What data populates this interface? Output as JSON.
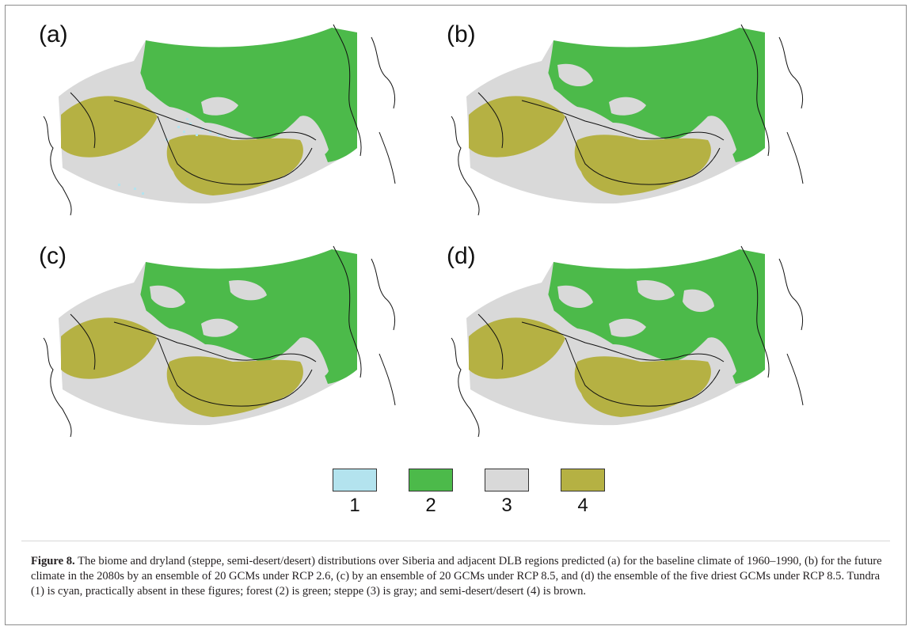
{
  "panels": [
    {
      "label": "(a)",
      "extra_gray": 0,
      "tundra": true
    },
    {
      "label": "(b)",
      "extra_gray": 1,
      "tundra": false
    },
    {
      "label": "(c)",
      "extra_gray": 2,
      "tundra": false
    },
    {
      "label": "(d)",
      "extra_gray": 3,
      "tundra": false
    }
  ],
  "legend": [
    {
      "number": "1",
      "color": "#b3e3ee"
    },
    {
      "number": "2",
      "color": "#4cba4a"
    },
    {
      "number": "3",
      "color": "#d9d9d9"
    },
    {
      "number": "4",
      "color": "#b5b143"
    }
  ],
  "caption": {
    "title": "Figure 8.",
    "text": "The biome and dryland (steppe, semi-desert/desert) distributions over Siberia and adjacent DLB regions predicted (a) for the baseline climate of 1960–1990, (b) for the future climate in the 2080s by an ensemble of 20 GCMs under RCP 2.6, (c) by an ensemble of 20 GCMs under RCP 8.5, and (d) the ensemble of the five driest GCMs under RCP 8.5. Tundra (1) is cyan, practically absent in these figures; forest (2) is green; steppe (3) is gray; and semi-desert/desert (4) is brown."
  }
}
